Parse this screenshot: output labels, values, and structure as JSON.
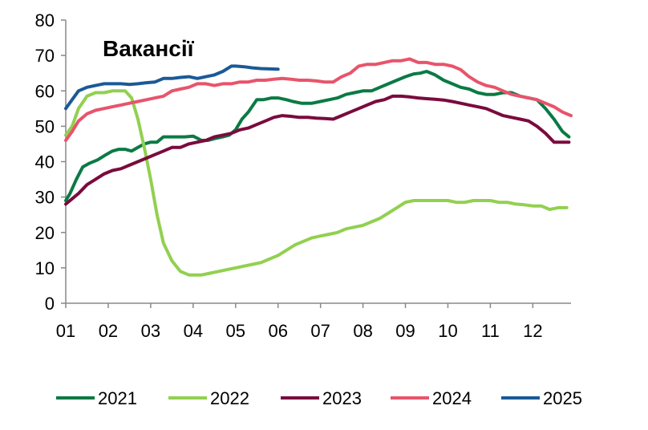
{
  "chart_data": {
    "type": "line",
    "title": "Вакансії",
    "xlabel": "",
    "ylabel": "",
    "xlim": [
      1,
      12.9
    ],
    "ylim": [
      0,
      80
    ],
    "yticks": [
      "0",
      "10",
      "20",
      "30",
      "40",
      "50",
      "60",
      "70",
      "80"
    ],
    "xticks": [
      "01",
      "02",
      "03",
      "04",
      "05",
      "06",
      "07",
      "08",
      "09",
      "10",
      "11",
      "12"
    ],
    "grid": false,
    "legend_position": "bottom",
    "series": [
      {
        "name": "2021",
        "color": "#0b7a45",
        "x": [
          1,
          1.1,
          1.25,
          1.4,
          1.55,
          1.75,
          1.95,
          2.1,
          2.25,
          2.4,
          2.55,
          2.7,
          2.85,
          3.0,
          3.15,
          3.3,
          3.45,
          3.6,
          3.8,
          4.0,
          4.2,
          4.35,
          4.5,
          4.7,
          4.85,
          5.0,
          5.15,
          5.3,
          5.5,
          5.65,
          5.85,
          6.0,
          6.2,
          6.35,
          6.55,
          6.8,
          7.0,
          7.2,
          7.4,
          7.6,
          7.8,
          8.0,
          8.2,
          8.4,
          8.6,
          8.8,
          9.0,
          9.2,
          9.35,
          9.5,
          9.7,
          9.9,
          10.1,
          10.3,
          10.5,
          10.7,
          10.9,
          11.1,
          11.3,
          11.5,
          11.7,
          11.9,
          12.1,
          12.3,
          12.5,
          12.7,
          12.85
        ],
        "values": [
          29,
          31,
          35,
          38.5,
          39.5,
          40.5,
          42,
          43,
          43.5,
          43.5,
          43,
          44,
          45,
          45.5,
          45.5,
          47,
          47,
          47,
          47,
          47.2,
          46,
          46,
          46.5,
          47,
          47.5,
          49,
          52,
          54,
          57.5,
          57.5,
          58,
          58,
          57.5,
          57,
          56.5,
          56.5,
          57,
          57.5,
          58,
          59,
          59.5,
          60,
          60,
          61,
          62,
          63,
          64,
          64.8,
          65,
          65.5,
          64.5,
          63,
          62,
          61,
          60.5,
          59.5,
          59,
          59,
          59.5,
          59.5,
          58.5,
          58,
          57.5,
          55,
          52,
          48.5,
          47
        ]
      },
      {
        "name": "2022",
        "color": "#92d050",
        "x": [
          1,
          1.15,
          1.3,
          1.5,
          1.7,
          1.9,
          2.1,
          2.25,
          2.4,
          2.55,
          2.7,
          2.85,
          3.0,
          3.15,
          3.3,
          3.5,
          3.7,
          3.9,
          4.0,
          4.2,
          4.4,
          4.6,
          4.8,
          5.0,
          5.2,
          5.4,
          5.6,
          5.8,
          6.0,
          6.2,
          6.4,
          6.6,
          6.8,
          7.0,
          7.2,
          7.4,
          7.6,
          7.8,
          8.0,
          8.2,
          8.4,
          8.6,
          8.8,
          9.0,
          9.2,
          9.4,
          9.6,
          9.8,
          10.0,
          10.2,
          10.4,
          10.6,
          10.8,
          11.0,
          11.2,
          11.4,
          11.6,
          11.8,
          12.0,
          12.2,
          12.4,
          12.6,
          12.8
        ],
        "values": [
          47.5,
          50,
          55,
          58.5,
          59.5,
          59.5,
          60,
          60,
          60,
          58,
          52,
          44,
          35,
          25,
          17,
          12,
          9,
          8,
          8,
          8,
          8.5,
          9,
          9.5,
          10,
          10.5,
          11,
          11.5,
          12.5,
          13.5,
          15,
          16.5,
          17.5,
          18.5,
          19,
          19.5,
          20,
          21,
          21.5,
          22,
          23,
          24,
          25.5,
          27,
          28.5,
          29,
          29,
          29,
          29,
          29,
          28.5,
          28.5,
          29,
          29,
          29,
          28.5,
          28.5,
          28,
          27.8,
          27.5,
          27.5,
          26.5,
          27,
          27
        ]
      },
      {
        "name": "2023",
        "color": "#7a0b3e",
        "x": [
          1,
          1.15,
          1.3,
          1.5,
          1.7,
          1.9,
          2.1,
          2.3,
          2.5,
          2.7,
          2.9,
          3.1,
          3.3,
          3.5,
          3.7,
          3.9,
          4.1,
          4.3,
          4.5,
          4.7,
          4.9,
          5.1,
          5.3,
          5.5,
          5.7,
          5.9,
          6.1,
          6.3,
          6.5,
          6.7,
          6.9,
          7.1,
          7.3,
          7.5,
          7.7,
          7.9,
          8.1,
          8.3,
          8.5,
          8.7,
          8.9,
          9.1,
          9.3,
          9.5,
          9.7,
          9.9,
          10.1,
          10.3,
          10.5,
          10.7,
          10.9,
          11.1,
          11.3,
          11.5,
          11.7,
          11.9,
          12.1,
          12.3,
          12.5,
          12.7,
          12.85
        ],
        "values": [
          28,
          29.5,
          31,
          33.5,
          35,
          36.5,
          37.5,
          38,
          39,
          40,
          41,
          42,
          43,
          44,
          44,
          45,
          45.5,
          46,
          47,
          47.5,
          48,
          49,
          49.5,
          50.5,
          51.5,
          52.5,
          53,
          52.8,
          52.5,
          52.5,
          52.3,
          52.2,
          52,
          53,
          54,
          55,
          56,
          57,
          57.5,
          58.5,
          58.5,
          58.3,
          58,
          57.8,
          57.6,
          57.4,
          57,
          56.5,
          56,
          55.5,
          55,
          54,
          53,
          52.5,
          52,
          51.5,
          50,
          48,
          45.5,
          45.5,
          45.5
        ]
      },
      {
        "name": "2024",
        "color": "#e8546b",
        "x": [
          1,
          1.15,
          1.3,
          1.5,
          1.7,
          1.9,
          2.1,
          2.3,
          2.5,
          2.7,
          2.9,
          3.1,
          3.3,
          3.5,
          3.7,
          3.9,
          4.1,
          4.3,
          4.5,
          4.7,
          4.9,
          5.1,
          5.3,
          5.5,
          5.7,
          5.9,
          6.1,
          6.3,
          6.5,
          6.7,
          6.9,
          7.1,
          7.3,
          7.5,
          7.7,
          7.9,
          8.1,
          8.3,
          8.5,
          8.7,
          8.9,
          9.1,
          9.3,
          9.5,
          9.7,
          9.9,
          10.1,
          10.3,
          10.5,
          10.7,
          10.9,
          11.1,
          11.3,
          11.5,
          11.7,
          11.9,
          12.1,
          12.3,
          12.5,
          12.7,
          12.9
        ],
        "values": [
          46,
          48.5,
          51.5,
          53.5,
          54.5,
          55,
          55.5,
          56,
          56.5,
          57,
          57.5,
          58,
          58.5,
          60,
          60.5,
          61,
          62,
          62,
          61.5,
          62,
          62,
          62.5,
          62.5,
          63,
          63,
          63.3,
          63.5,
          63.3,
          63,
          63,
          62.8,
          62.5,
          62.5,
          64,
          65,
          67,
          67.5,
          67.5,
          68,
          68.5,
          68.5,
          69,
          68,
          68,
          67.5,
          67.5,
          67,
          66,
          64,
          62.5,
          61.5,
          61,
          60,
          59,
          58.5,
          58,
          57.5,
          56.5,
          55.5,
          54,
          53
        ]
      },
      {
        "name": "2025",
        "color": "#1a5a96",
        "x": [
          1,
          1.15,
          1.3,
          1.5,
          1.7,
          1.9,
          2.1,
          2.3,
          2.5,
          2.7,
          2.9,
          3.1,
          3.3,
          3.5,
          3.7,
          3.9,
          4.1,
          4.3,
          4.5,
          4.7,
          4.9,
          5.0,
          5.2,
          5.4,
          5.6,
          5.8,
          6.0
        ],
        "values": [
          55,
          57.5,
          60,
          61,
          61.5,
          62,
          62,
          62,
          61.8,
          62,
          62.3,
          62.5,
          63.5,
          63.5,
          63.8,
          64,
          63.5,
          64,
          64.5,
          65.5,
          67,
          67,
          66.8,
          66.5,
          66.3,
          66.2,
          66.1
        ]
      }
    ]
  }
}
